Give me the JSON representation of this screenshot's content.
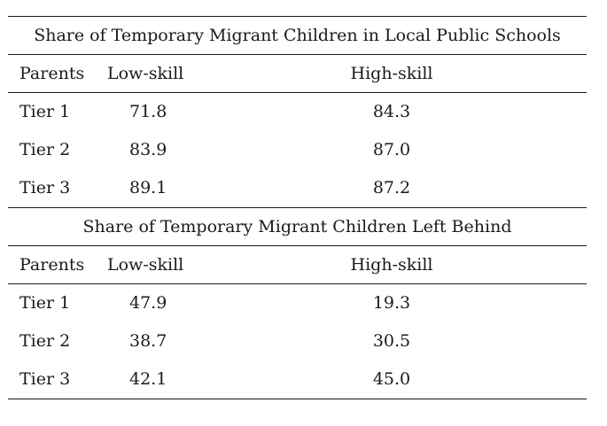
{
  "panels": [
    {
      "title": "Share of Temporary Migrant Children in Local Public Schools",
      "header": {
        "parents": "Parents",
        "low": "Low-skill",
        "high": "High-skill"
      },
      "rows": [
        {
          "tier": "Tier 1",
          "low": "71.8",
          "high": "84.3"
        },
        {
          "tier": "Tier 2",
          "low": "83.9",
          "high": "87.0"
        },
        {
          "tier": "Tier 3",
          "low": "89.1",
          "high": "87.2"
        }
      ]
    },
    {
      "title": "Share of Temporary Migrant Children Left Behind",
      "header": {
        "parents": "Parents",
        "low": "Low-skill",
        "high": "High-skill"
      },
      "rows": [
        {
          "tier": "Tier 1",
          "low": "47.9",
          "high": "19.3"
        },
        {
          "tier": "Tier 2",
          "low": "38.7",
          "high": "30.5"
        },
        {
          "tier": "Tier 3",
          "low": "42.1",
          "high": "45.0"
        }
      ]
    }
  ]
}
